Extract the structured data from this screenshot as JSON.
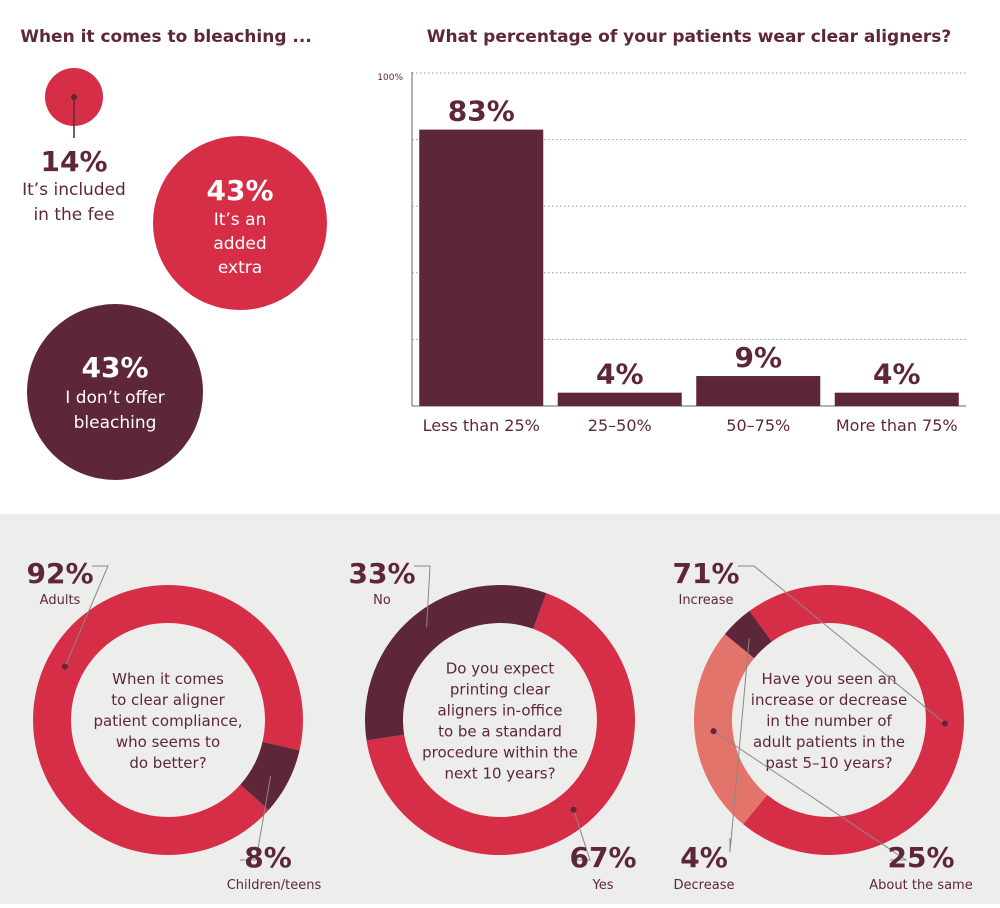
{
  "colors": {
    "red": "#d72e47",
    "maroon": "#5e2739",
    "salmon": "#e3746b",
    "text": "#5e2739",
    "gray_bg": "#ededec",
    "grid": "#999999"
  },
  "bleaching": {
    "title": "When it comes to bleaching ...",
    "items": [
      {
        "pct": "14%",
        "label_lines": [
          "It’s included",
          "in the fee"
        ],
        "value": 14
      },
      {
        "pct": "43%",
        "label_lines": [
          "It’s an",
          "added",
          "extra"
        ],
        "value": 43
      },
      {
        "pct": "43%",
        "label_lines": [
          "I don’t offer",
          "bleaching"
        ],
        "value": 43
      }
    ]
  },
  "chart_data": [
    {
      "type": "bar",
      "title": "What percentage of your patients wear clear aligners?",
      "categories": [
        "Less than 25%",
        "25–50%",
        "50–75%",
        "More than 75%"
      ],
      "values": [
        83,
        4,
        9,
        4
      ],
      "value_labels": [
        "83%",
        "4%",
        "9%",
        "4%"
      ],
      "ylim": [
        0,
        100
      ],
      "y_tick_label": "100%",
      "grid": true
    },
    {
      "type": "pie",
      "question_lines": [
        "When it comes",
        "to clear aligner",
        "patient compliance,",
        "who seems to",
        "do better?"
      ],
      "slices": [
        {
          "name": "Adults",
          "value": 92,
          "pct": "92%",
          "color": "#d72e47"
        },
        {
          "name": "Children/teens",
          "value": 8,
          "pct": "8%",
          "color": "#5e2739"
        }
      ]
    },
    {
      "type": "pie",
      "question_lines": [
        "Do you expect",
        "printing clear",
        "aligners in-office",
        "to be a standard",
        "procedure within the",
        "next 10 years?"
      ],
      "slices": [
        {
          "name": "Yes",
          "value": 67,
          "pct": "67%",
          "color": "#d72e47"
        },
        {
          "name": "No",
          "value": 33,
          "pct": "33%",
          "color": "#5e2739"
        }
      ]
    },
    {
      "type": "pie",
      "question_lines": [
        "Have you seen an",
        "increase or decrease",
        "in the number of",
        "adult patients in the",
        "past 5–10 years?"
      ],
      "slices": [
        {
          "name": "Increase",
          "value": 71,
          "pct": "71%",
          "color": "#d72e47"
        },
        {
          "name": "About the same",
          "value": 25,
          "pct": "25%",
          "color": "#e3746b"
        },
        {
          "name": "Decrease",
          "value": 4,
          "pct": "4%",
          "color": "#5e2739"
        }
      ]
    }
  ]
}
